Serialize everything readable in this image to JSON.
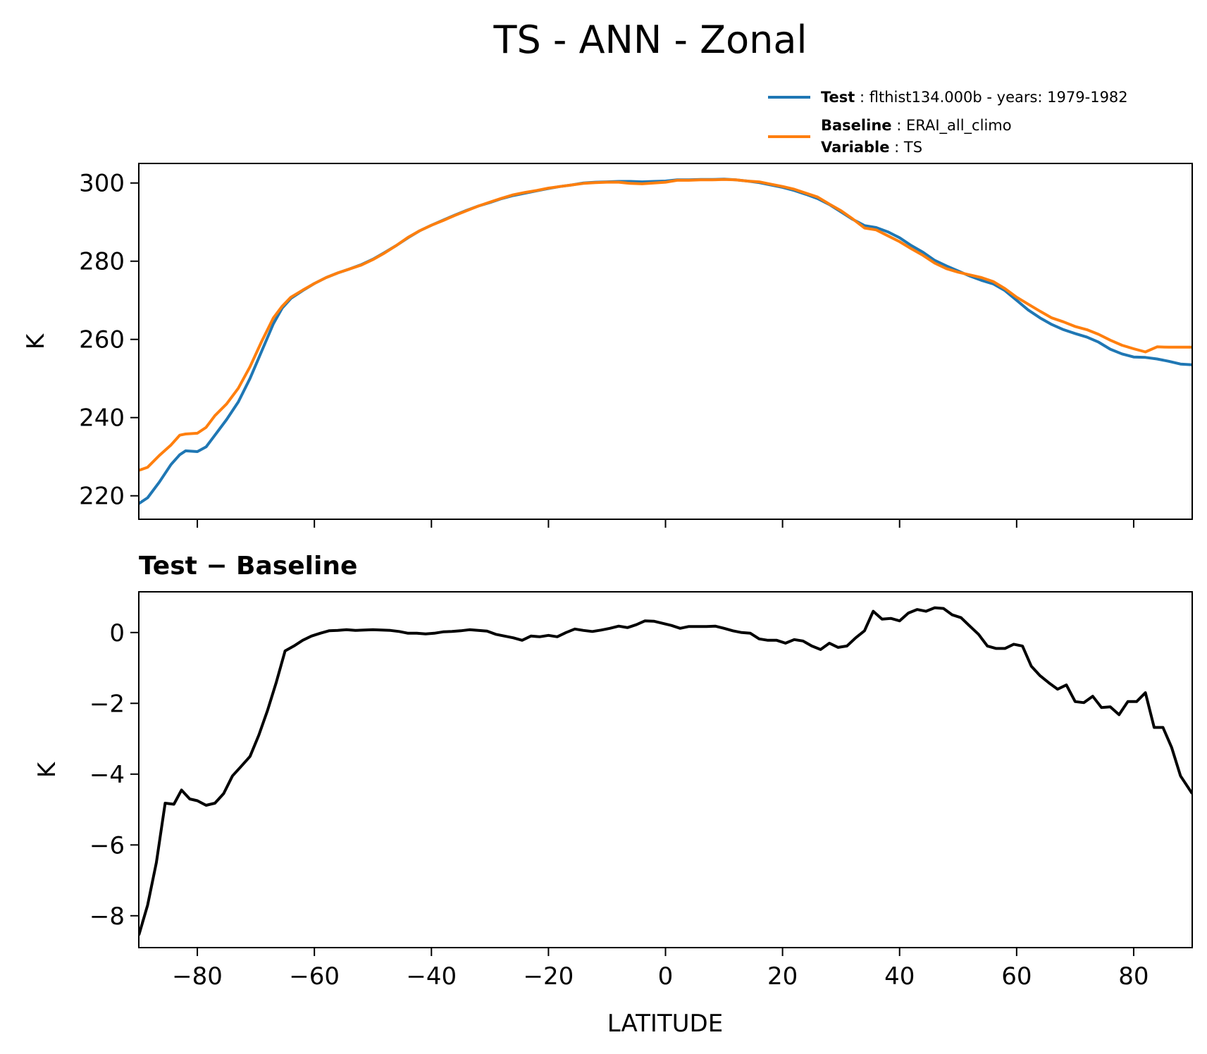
{
  "figure": {
    "title": "TS - ANN - Zonal"
  },
  "colors": {
    "test": "#1f77b4",
    "baseline": "#ff7f0e",
    "diff": "#000000"
  },
  "chart_data": [
    {
      "type": "line",
      "title": "",
      "xlabel": "",
      "ylabel": "K",
      "xlim": [
        -90,
        90
      ],
      "ylim": [
        214,
        305
      ],
      "xticks": [
        -80,
        -60,
        -40,
        -20,
        0,
        20,
        40,
        60,
        80
      ],
      "yticks": [
        220,
        240,
        260,
        280,
        300
      ],
      "ytick_labels": [
        "220",
        "240",
        "260",
        "280",
        "300"
      ],
      "legend": {
        "placement": "above-right",
        "entries": [
          {
            "series": "Test",
            "lines": [
              {
                "key": "Test",
                "text": "flthist134.000b - years: 1979-1982"
              }
            ]
          },
          {
            "series": "Baseline",
            "lines": [
              {
                "key": "Baseline",
                "text": "ERAI_all_climo"
              },
              {
                "key": "Variable",
                "text": "TS"
              }
            ]
          }
        ]
      },
      "series": [
        {
          "name": "Test",
          "color": "#1f77b4",
          "x": [
            -90,
            -88.5,
            -86.5,
            -84.5,
            -83,
            -82,
            -80,
            -78.5,
            -77,
            -75,
            -73,
            -71,
            -69,
            -67,
            -65.5,
            -64,
            -62,
            -60,
            -58,
            -56,
            -54,
            -52,
            -50,
            -48,
            -46,
            -44,
            -42,
            -40,
            -38,
            -36,
            -34,
            -32,
            -30,
            -28,
            -26,
            -24,
            -22,
            -20,
            -18,
            -16,
            -14,
            -12,
            -10,
            -8,
            -6,
            -4,
            -2,
            0,
            2,
            4,
            6,
            8,
            10,
            12,
            14,
            16,
            18,
            20,
            22,
            24,
            26,
            28,
            30,
            32,
            34,
            36,
            38,
            40,
            42,
            44,
            46,
            48,
            50,
            52,
            54,
            56,
            58,
            60,
            62,
            64,
            66,
            68,
            70,
            72,
            74,
            76,
            78,
            80,
            82,
            84,
            86,
            88,
            90
          ],
          "values": [
            218,
            219.5,
            223.5,
            228,
            230.5,
            231.5,
            231.3,
            232.5,
            235.5,
            239.5,
            244,
            250,
            257,
            264,
            268,
            270.5,
            272.5,
            274.3,
            275.8,
            277,
            278,
            279.1,
            280.5,
            282.2,
            284,
            286,
            287.8,
            289.2,
            290.5,
            291.8,
            293,
            294.1,
            295,
            296,
            296.8,
            297.4,
            298,
            298.6,
            299.1,
            299.5,
            300,
            300.2,
            300.3,
            300.4,
            300.4,
            300.3,
            300.4,
            300.5,
            300.8,
            300.8,
            300.9,
            300.9,
            301,
            300.8,
            300.5,
            300.1,
            299.5,
            298.9,
            298.1,
            297.1,
            296,
            294.5,
            292.6,
            290.7,
            289.1,
            288.6,
            287.5,
            286,
            284,
            282.3,
            280.2,
            278.8,
            277.5,
            276.2,
            275.1,
            274.2,
            272.5,
            270,
            267.5,
            265.5,
            263.8,
            262.5,
            261.5,
            260.6,
            259.3,
            257.5,
            256.3,
            255.5,
            255.4,
            255,
            254.4,
            253.7,
            253.5
          ]
        },
        {
          "name": "Baseline",
          "color": "#ff7f0e",
          "x": [
            -90,
            -88.5,
            -86.5,
            -84.5,
            -83,
            -82,
            -80,
            -78.5,
            -77,
            -75,
            -73,
            -71,
            -69,
            -67,
            -65.5,
            -64,
            -62,
            -60,
            -58,
            -56,
            -54,
            -52,
            -50,
            -48,
            -46,
            -44,
            -42,
            -40,
            -38,
            -36,
            -34,
            -32,
            -30,
            -28,
            -26,
            -24,
            -22,
            -20,
            -18,
            -16,
            -14,
            -12,
            -10,
            -8,
            -6,
            -4,
            -2,
            0,
            2,
            4,
            6,
            8,
            10,
            12,
            14,
            16,
            18,
            20,
            22,
            24,
            26,
            28,
            30,
            32,
            34,
            36,
            38,
            40,
            42,
            44,
            46,
            48,
            50,
            52,
            54,
            56,
            58,
            60,
            62,
            64,
            66,
            68,
            70,
            72,
            74,
            76,
            78,
            80,
            82,
            84,
            86,
            88,
            90
          ],
          "values": [
            226.5,
            227.3,
            230.3,
            233,
            235.5,
            235.8,
            236,
            237.5,
            240.5,
            243.5,
            247.5,
            253,
            259.5,
            265.5,
            268.5,
            270.8,
            272.6,
            274.3,
            275.8,
            277,
            278,
            279,
            280.4,
            282.1,
            284,
            286.1,
            287.8,
            289.2,
            290.4,
            291.7,
            292.9,
            294.1,
            295.1,
            296.1,
            297,
            297.6,
            298.1,
            298.7,
            299.1,
            299.5,
            299.9,
            300.1,
            300.2,
            300.2,
            299.9,
            299.8,
            300,
            300.2,
            300.7,
            300.7,
            300.8,
            300.8,
            300.9,
            300.8,
            300.5,
            300.3,
            299.7,
            299.1,
            298.4,
            297.4,
            296.4,
            294.6,
            292.9,
            290.8,
            288.5,
            288,
            286.5,
            285,
            283.2,
            281.5,
            279.5,
            278.1,
            277.2,
            276.5,
            275.8,
            274.8,
            273,
            270.8,
            269,
            267.2,
            265.5,
            264.5,
            263.3,
            262.5,
            261.3,
            259.8,
            258.5,
            257.6,
            256.8,
            258.1,
            258,
            258,
            258
          ]
        }
      ]
    },
    {
      "type": "line",
      "title": "Test − Baseline",
      "xlabel": "LATITUDE",
      "ylabel": "K",
      "xlim": [
        -90,
        90
      ],
      "ylim": [
        -8.9,
        1.15
      ],
      "xticks": [
        -80,
        -60,
        -40,
        -20,
        0,
        20,
        40,
        60,
        80
      ],
      "xtick_labels": [
        "−80",
        "−60",
        "−40",
        "−20",
        "0",
        "20",
        "40",
        "60",
        "80"
      ],
      "yticks": [
        -8,
        -6,
        -4,
        -2,
        0
      ],
      "ytick_labels": [
        "−8",
        "−6",
        "−4",
        "−2",
        "0"
      ],
      "series": [
        {
          "name": "Test − Baseline",
          "color": "#000000",
          "x": [
            -90,
            -88.5,
            -87,
            -85.5,
            -84,
            -82.7,
            -81.3,
            -80,
            -78.5,
            -77,
            -75.5,
            -74,
            -72.5,
            -71,
            -69.5,
            -68,
            -66.5,
            -65,
            -63.5,
            -62,
            -60.5,
            -59,
            -57.5,
            -56,
            -54.5,
            -53,
            -51.5,
            -50,
            -48.5,
            -47,
            -45.5,
            -44,
            -42.5,
            -41,
            -39.5,
            -38,
            -36.5,
            -35,
            -33.5,
            -32,
            -30.5,
            -29,
            -27.5,
            -26,
            -24.5,
            -23,
            -21.5,
            -20,
            -18.5,
            -17,
            -15.5,
            -14,
            -12.5,
            -11,
            -9.5,
            -8,
            -6.5,
            -5,
            -3.5,
            -2,
            -0.5,
            1,
            2.5,
            4,
            5.5,
            7,
            8.5,
            10,
            11.5,
            13,
            14.5,
            16,
            17.5,
            19,
            20.5,
            22,
            23.5,
            25,
            26.5,
            28,
            29.5,
            31,
            32.5,
            34,
            35.5,
            37,
            38.5,
            40,
            41.5,
            43,
            44.5,
            46,
            47.5,
            49,
            50.5,
            52,
            53.5,
            55,
            56.5,
            58,
            59.5,
            61,
            62.5,
            64,
            65.5,
            67,
            68.5,
            70,
            71.5,
            73,
            74.5,
            76,
            77.5,
            79,
            80.5,
            82,
            83.5,
            85,
            86.5,
            88,
            90
          ],
          "values": [
            -8.55,
            -7.7,
            -6.5,
            -4.82,
            -4.85,
            -4.45,
            -4.7,
            -4.75,
            -4.88,
            -4.82,
            -4.55,
            -4.05,
            -3.78,
            -3.5,
            -2.9,
            -2.2,
            -1.4,
            -0.52,
            -0.38,
            -0.22,
            -0.1,
            -0.02,
            0.05,
            0.06,
            0.08,
            0.06,
            0.07,
            0.08,
            0.07,
            0.06,
            0.03,
            -0.02,
            -0.02,
            -0.04,
            -0.02,
            0.02,
            0.03,
            0.05,
            0.08,
            0.06,
            0.04,
            -0.05,
            -0.1,
            -0.15,
            -0.22,
            -0.1,
            -0.12,
            -0.08,
            -0.12,
            0,
            0.1,
            0.06,
            0.03,
            0.07,
            0.12,
            0.18,
            0.14,
            0.22,
            0.33,
            0.32,
            0.26,
            0.2,
            0.12,
            0.17,
            0.17,
            0.17,
            0.18,
            0.12,
            0.05,
            0,
            -0.02,
            -0.18,
            -0.22,
            -0.22,
            -0.3,
            -0.2,
            -0.24,
            -0.38,
            -0.48,
            -0.3,
            -0.42,
            -0.38,
            -0.15,
            0.05,
            0.6,
            0.38,
            0.4,
            0.33,
            0.55,
            0.65,
            0.6,
            0.7,
            0.68,
            0.5,
            0.42,
            0.18,
            -0.05,
            -0.38,
            -0.45,
            -0.45,
            -0.33,
            -0.38,
            -0.95,
            -1.22,
            -1.42,
            -1.6,
            -1.48,
            -1.95,
            -1.98,
            -1.8,
            -2.12,
            -2.1,
            -2.32,
            -1.95,
            -1.95,
            -1.7,
            -2.68,
            -2.68,
            -3.25,
            -4.05,
            -4.55
          ]
        }
      ]
    }
  ]
}
